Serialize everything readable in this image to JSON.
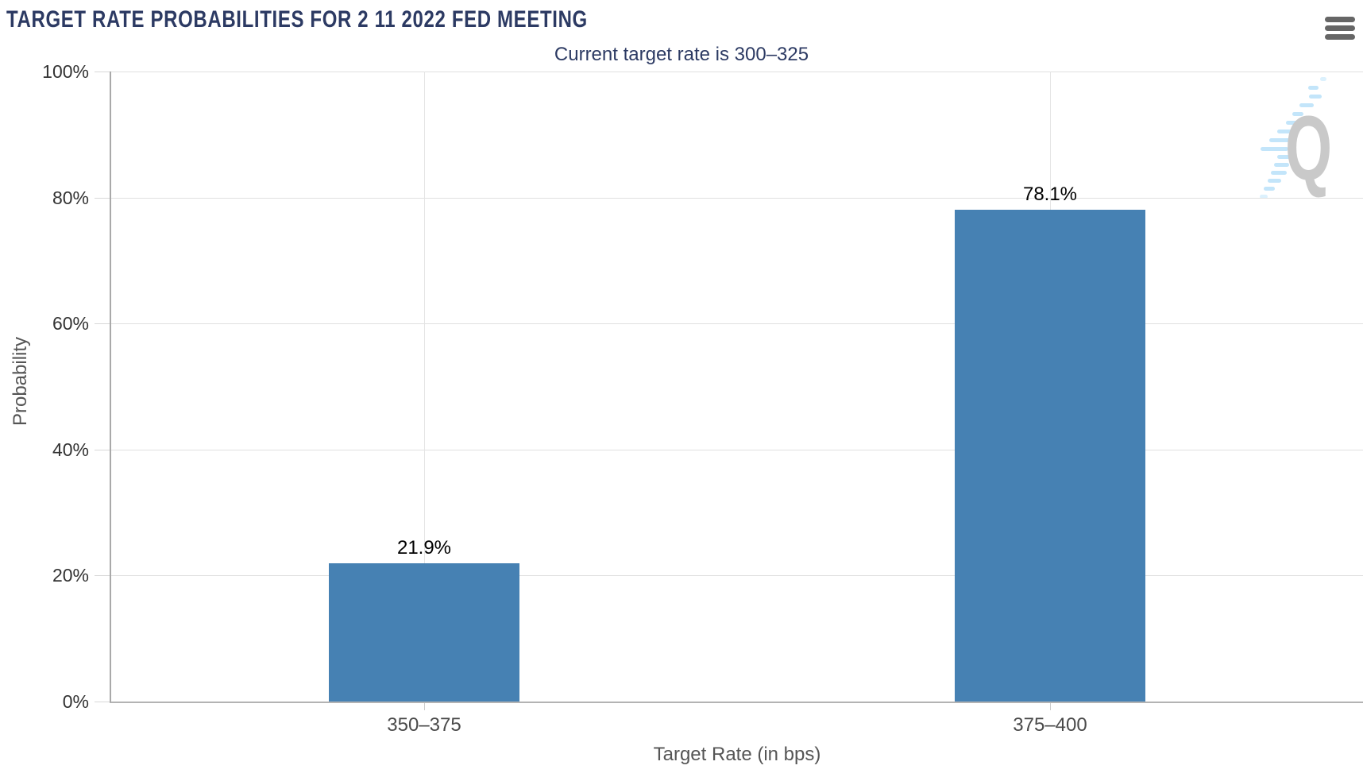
{
  "chart_data": {
    "type": "bar",
    "title": "TARGET RATE PROBABILITIES FOR 2 11 2022 FED MEETING",
    "subtitle": "Current target rate is 300–325",
    "categories": [
      "350–375",
      "375–400"
    ],
    "values": [
      21.9,
      78.1
    ],
    "value_labels": [
      "21.9%",
      "78.1%"
    ],
    "xlabel": "Target Rate (in bps)",
    "ylabel": "Probability",
    "ylim": [
      0,
      100
    ],
    "yticks": [
      0,
      20,
      40,
      60,
      80,
      100
    ],
    "ytick_labels": [
      "0%",
      "20%",
      "40%",
      "60%",
      "80%",
      "100%"
    ],
    "grid": true,
    "legend": false,
    "bar_color": "#4681b3"
  },
  "toolbar": {
    "menu_icon": "hamburger-menu-icon"
  },
  "watermark": {
    "letter": "Q",
    "letter_color": "#c9c9c9",
    "swoosh_color": "#c3e5fa"
  },
  "colors": {
    "title": "#2c3a63",
    "bar": "#4681b3",
    "gridline": "#e0e0e0",
    "axis_line": "#b3b3b3",
    "ytick_label": "#333333",
    "xtick_label": "#4a4a4a",
    "axis_title": "#555555",
    "menu_icon": "#666666"
  }
}
